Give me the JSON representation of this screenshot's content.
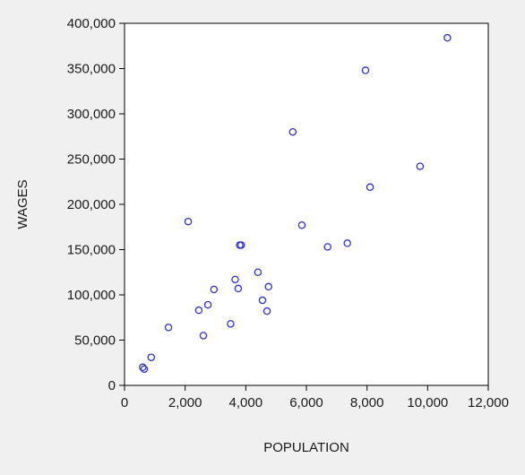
{
  "chart_data": {
    "type": "scatter",
    "title": "",
    "xlabel": "POPULATION",
    "ylabel": "WAGES",
    "xlim": [
      0,
      12000
    ],
    "ylim": [
      0,
      400000
    ],
    "xticks": [
      0,
      2000,
      4000,
      6000,
      8000,
      10000,
      12000
    ],
    "yticks": [
      0,
      50000,
      100000,
      150000,
      200000,
      250000,
      300000,
      350000,
      400000
    ],
    "xtick_labels": [
      "0",
      "2,000",
      "4,000",
      "6,000",
      "8,000",
      "10,000",
      "12,000"
    ],
    "ytick_labels": [
      "0",
      "50,000",
      "100,000",
      "150,000",
      "200,000",
      "250,000",
      "300,000",
      "350,000",
      "400,000"
    ],
    "grid": false,
    "marker": "hollow-circle",
    "series": [
      {
        "color": "#3333cc",
        "points": [
          [
            600,
            20000
          ],
          [
            650,
            18000
          ],
          [
            880,
            31000
          ],
          [
            1450,
            64000
          ],
          [
            2100,
            181000
          ],
          [
            2450,
            83000
          ],
          [
            2600,
            55000
          ],
          [
            2750,
            89000
          ],
          [
            2950,
            106000
          ],
          [
            3500,
            68000
          ],
          [
            3650,
            117000
          ],
          [
            3750,
            107000
          ],
          [
            3800,
            155000
          ],
          [
            3850,
            155000
          ],
          [
            4400,
            125000
          ],
          [
            4550,
            94000
          ],
          [
            4700,
            82000
          ],
          [
            4750,
            109000
          ],
          [
            5550,
            280000
          ],
          [
            5850,
            177000
          ],
          [
            6700,
            153000
          ],
          [
            7350,
            157000
          ],
          [
            7950,
            348000
          ],
          [
            8100,
            219000
          ],
          [
            9750,
            242000
          ],
          [
            10650,
            384000
          ]
        ]
      }
    ]
  }
}
